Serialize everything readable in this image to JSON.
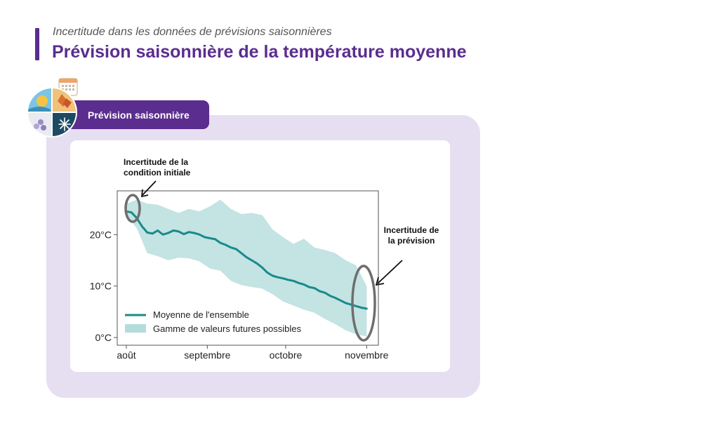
{
  "header": {
    "subtitle": "Incertitude dans les données de prévisions saisonnières",
    "title": "Prévision saisonnière de la température moyenne"
  },
  "badge": {
    "label": "Prévision saisonnière"
  },
  "icon": {
    "name": "seasons-calendar-icon"
  },
  "colors": {
    "accent": "#5b2d8e",
    "panel": "#e6dff1",
    "mean_line": "#1a8a8a",
    "range_fill": "#b5dcdc",
    "ellipse": "#6e6e6e"
  },
  "chart_data": {
    "type": "line",
    "x_ticks": [
      "août",
      "septembre",
      "octobre",
      "novembre"
    ],
    "y_ticks": [
      "0°C",
      "10°C",
      "20°C"
    ],
    "ylim": [
      -1.5,
      28.5
    ],
    "x_start": "2023-08-01",
    "x_end": "2023-11-02",
    "tick_dates": [
      "2023-08-01",
      "2023-09-01",
      "2023-10-01",
      "2023-11-01"
    ],
    "series": [
      {
        "name": "Moyenne de l'ensemble",
        "x": [
          "2023-08-01",
          "2023-08-03",
          "2023-08-05",
          "2023-08-07",
          "2023-08-09",
          "2023-08-11",
          "2023-08-13",
          "2023-08-15",
          "2023-08-17",
          "2023-08-19",
          "2023-08-21",
          "2023-08-23",
          "2023-08-25",
          "2023-08-27",
          "2023-08-29",
          "2023-08-31",
          "2023-09-02",
          "2023-09-04",
          "2023-09-06",
          "2023-09-08",
          "2023-09-10",
          "2023-09-12",
          "2023-09-14",
          "2023-09-16",
          "2023-09-18",
          "2023-09-20",
          "2023-09-22",
          "2023-09-24",
          "2023-09-26",
          "2023-09-28",
          "2023-09-30",
          "2023-10-02",
          "2023-10-04",
          "2023-10-06",
          "2023-10-08",
          "2023-10-10",
          "2023-10-12",
          "2023-10-14",
          "2023-10-16",
          "2023-10-18",
          "2023-10-20",
          "2023-10-22",
          "2023-10-24",
          "2023-10-26",
          "2023-10-28",
          "2023-10-30",
          "2023-11-01"
        ],
        "values": [
          24.5,
          24.3,
          23.2,
          21.6,
          20.4,
          20.2,
          20.8,
          20.0,
          20.3,
          20.8,
          20.6,
          20.1,
          20.5,
          20.3,
          20.0,
          19.5,
          19.3,
          19.1,
          18.4,
          18.0,
          17.5,
          17.2,
          16.4,
          15.6,
          15.0,
          14.4,
          13.6,
          12.6,
          12.0,
          11.7,
          11.5,
          11.2,
          11.0,
          10.6,
          10.3,
          9.8,
          9.6,
          9.0,
          8.7,
          8.1,
          7.7,
          7.2,
          6.7,
          6.4,
          6.1,
          5.8,
          5.6
        ]
      },
      {
        "name": "Gamme de valeurs futures possibles",
        "x": [
          "2023-08-01",
          "2023-08-05",
          "2023-08-09",
          "2023-08-13",
          "2023-08-17",
          "2023-08-21",
          "2023-08-25",
          "2023-08-29",
          "2023-09-02",
          "2023-09-06",
          "2023-09-10",
          "2023-09-14",
          "2023-09-18",
          "2023-09-22",
          "2023-09-26",
          "2023-09-30",
          "2023-10-04",
          "2023-10-08",
          "2023-10-12",
          "2023-10-16",
          "2023-10-20",
          "2023-10-24",
          "2023-10-28",
          "2023-11-01"
        ],
        "upper": [
          26.0,
          26.8,
          26.0,
          25.8,
          25.0,
          24.2,
          25.0,
          24.5,
          25.5,
          26.8,
          25.0,
          24.0,
          24.2,
          23.8,
          21.0,
          19.5,
          18.2,
          19.2,
          17.5,
          17.0,
          16.4,
          15.0,
          14.0,
          10.0
        ],
        "lower": [
          23.8,
          21.2,
          16.4,
          15.8,
          15.0,
          15.5,
          15.4,
          14.8,
          13.4,
          13.0,
          11.0,
          10.2,
          9.8,
          9.5,
          8.4,
          7.0,
          6.2,
          5.4,
          4.8,
          3.6,
          2.6,
          1.4,
          0.6,
          0.2
        ]
      }
    ],
    "annotations": [
      "Incertitude de la condition initiale",
      "Incertitude de la prévision"
    ]
  }
}
